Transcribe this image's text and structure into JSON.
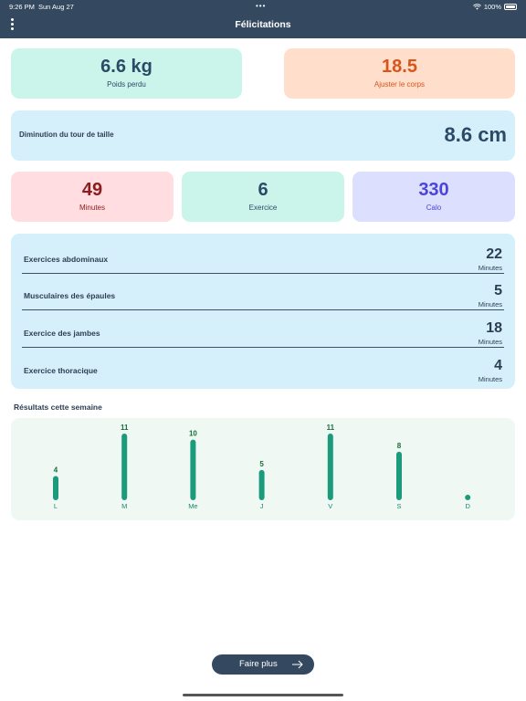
{
  "status_bar": {
    "time": "9:26 PM",
    "date": "Sun Aug 27",
    "dots": "•••",
    "battery": "100%"
  },
  "header": {
    "title": "Félicitations"
  },
  "weight_card": {
    "value": "6.6 kg",
    "label": "Poids perdu"
  },
  "body_card": {
    "value": "18.5",
    "label": "Ajuster le corps"
  },
  "waist_card": {
    "label": "Diminution du tour de taille",
    "value": "8.6 cm"
  },
  "stats": [
    {
      "value": "49",
      "label": "Minutes"
    },
    {
      "value": "6",
      "label": "Exercice"
    },
    {
      "value": "330",
      "label": "Calo"
    }
  ],
  "exercises": [
    {
      "name": "Exercices abdominaux",
      "value": "22",
      "unit": "Minutes"
    },
    {
      "name": "Musculaires des épaules",
      "value": "5",
      "unit": "Minutes"
    },
    {
      "name": "Exercice des jambes",
      "value": "18",
      "unit": "Minutes"
    },
    {
      "name": "Exercice thoracique",
      "value": "4",
      "unit": "Minutes"
    }
  ],
  "weekly": {
    "title": "Résultats cette semaine"
  },
  "chart_data": {
    "type": "bar",
    "categories": [
      "L",
      "M",
      "Me",
      "J",
      "V",
      "S",
      "D"
    ],
    "values": [
      4,
      11,
      10,
      5,
      11,
      8,
      0
    ],
    "title": "",
    "xlabel": "",
    "ylabel": "",
    "ylim": [
      0,
      11
    ],
    "bar_color": "#1b9a7c",
    "label_color": "#14703a",
    "grid": false
  },
  "cta": {
    "label": "Faire plus"
  },
  "colors": {
    "header": "#344960",
    "weight_bg": "#cbf5ea",
    "body_bg": "#ffdecb",
    "body_text": "#d9531a",
    "minutes_bg": "#ffdde0",
    "minutes_text": "#8e1c1c",
    "calories_bg": "#dcdffd",
    "calories_text": "#4a45d8",
    "panel_bg": "#d6f0fb"
  }
}
